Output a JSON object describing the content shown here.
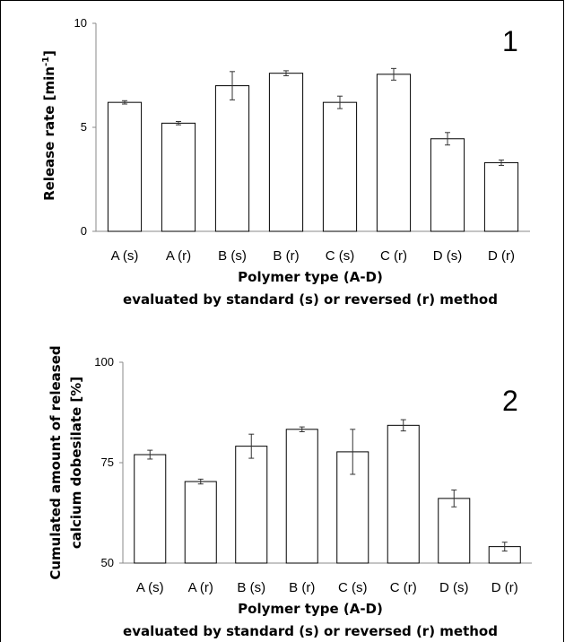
{
  "chart_data": [
    {
      "type": "bar",
      "panel_label": "1",
      "categories": [
        "A (s)",
        "A (r)",
        "B (s)",
        "B (r)",
        "C (s)",
        "C (r)",
        "D (s)",
        "D (r)"
      ],
      "values": [
        6.2,
        5.2,
        7.0,
        7.6,
        6.2,
        7.55,
        4.45,
        3.3
      ],
      "errors": [
        0.08,
        0.08,
        0.68,
        0.12,
        0.3,
        0.28,
        0.3,
        0.13
      ],
      "ylim": [
        0,
        10
      ],
      "yticks": [
        0,
        5,
        10
      ],
      "ylabel": "Release rate [min",
      "ylabel_sup": "-1",
      "ylabel_end": "]",
      "xlabel": "Polymer type (A-D)",
      "xlabel2": "evaluated by standard (s) or reversed (r) method",
      "grid": false,
      "bar_fill": "#ffffff",
      "bar_stroke": "#000000"
    },
    {
      "type": "bar",
      "panel_label": "2",
      "categories": [
        "A (s)",
        "A (r)",
        "B (s)",
        "B (r)",
        "C (s)",
        "C (r)",
        "D (s)",
        "D (r)"
      ],
      "values": [
        77,
        70.3,
        79.1,
        83.3,
        77.7,
        84.3,
        66.1,
        54.1
      ],
      "errors": [
        1.1,
        0.6,
        3.0,
        0.6,
        5.6,
        1.4,
        2.1,
        1.1
      ],
      "ylim": [
        50,
        100
      ],
      "yticks": [
        50,
        75,
        100
      ],
      "ylabel": "Cumulated amount of released",
      "ylabel2": "calcium dobesilate [%]",
      "xlabel": "Polymer type (A-D)",
      "xlabel2": "evaluated by standard (s) or reversed (r) method",
      "grid": false,
      "bar_fill": "#ffffff",
      "bar_stroke": "#000000"
    }
  ]
}
